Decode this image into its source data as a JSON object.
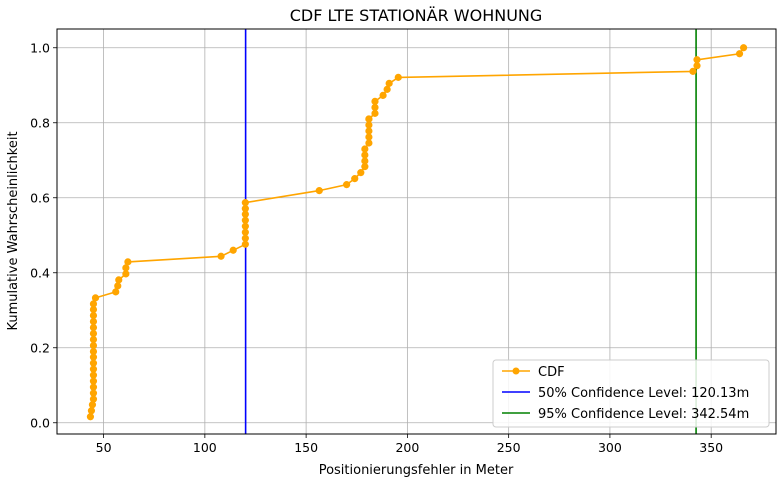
{
  "chart_data": {
    "type": "line",
    "title": "CDF LTE STATIONÄR WOHNUNG",
    "xlabel": "Positionierungsfehler in Meter",
    "ylabel": "Kumulative Wahrscheinlichkeit",
    "xlim": [
      27,
      382
    ],
    "ylim": [
      -0.03,
      1.05
    ],
    "xticks": [
      50,
      100,
      150,
      200,
      250,
      300,
      350
    ],
    "yticks": [
      0.0,
      0.2,
      0.4,
      0.6,
      0.8,
      1.0
    ],
    "xtick_labels": [
      "50",
      "100",
      "150",
      "200",
      "250",
      "300",
      "350"
    ],
    "ytick_labels": [
      "0.0",
      "0.2",
      "0.4",
      "0.6",
      "0.8",
      "1.0"
    ],
    "grid": true,
    "legend_position": "bottom-right",
    "series": [
      {
        "name": "CDF",
        "color": "#FFA500",
        "marker": "circle",
        "x": [
          43.5,
          44.0,
          44.5,
          45.0,
          45.0,
          45.0,
          45.0,
          45.0,
          45.0,
          45.0,
          45.0,
          45.0,
          45.0,
          45.0,
          45.0,
          45.0,
          45.0,
          45.0,
          45.0,
          45.0,
          46.0,
          56.0,
          57.0,
          57.5,
          61.0,
          61.0,
          62.0,
          108.0,
          114.0,
          120.0,
          120.0,
          120.0,
          120.0,
          120.0,
          120.0,
          120.0,
          120.0,
          156.5,
          170.0,
          174.0,
          177.0,
          179.0,
          179.0,
          179.0,
          179.0,
          181.0,
          181.0,
          181.0,
          181.0,
          181.0,
          181.0,
          184.0,
          184.0,
          184.0,
          188.0,
          190.0,
          191.0,
          195.5,
          341.0,
          343.0,
          343.0,
          364.0,
          366.0
        ],
        "y": [
          0.016,
          0.032,
          0.048,
          0.063,
          0.079,
          0.095,
          0.111,
          0.127,
          0.143,
          0.159,
          0.175,
          0.19,
          0.206,
          0.222,
          0.238,
          0.254,
          0.27,
          0.286,
          0.302,
          0.317,
          0.333,
          0.349,
          0.365,
          0.381,
          0.397,
          0.413,
          0.429,
          0.444,
          0.46,
          0.476,
          0.492,
          0.508,
          0.524,
          0.54,
          0.556,
          0.571,
          0.587,
          0.619,
          0.635,
          0.651,
          0.667,
          0.683,
          0.698,
          0.714,
          0.73,
          0.746,
          0.762,
          0.778,
          0.794,
          0.81,
          0.81,
          0.825,
          0.841,
          0.857,
          0.873,
          0.889,
          0.905,
          0.921,
          0.937,
          0.952,
          0.968,
          0.984,
          1.0
        ]
      },
      {
        "name": "50% Confidence Level: 120.13m",
        "color": "#0000FF",
        "type": "vline",
        "x": 120.13
      },
      {
        "name": "95% Confidence Level: 342.54m",
        "color": "#008000",
        "type": "vline",
        "x": 342.54
      }
    ]
  }
}
